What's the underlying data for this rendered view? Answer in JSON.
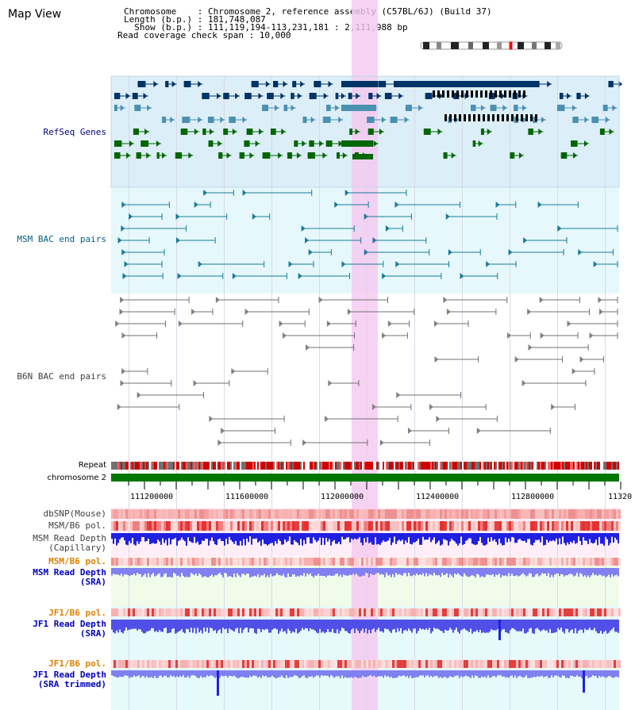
{
  "view_title": "Map View",
  "header": {
    "chromosome_line": "Chromosome    : Chromosome 2, reference assembly (C57BL/6J) (Build 37)",
    "length_line": "Length (b.p.) : 181,748,087",
    "show_line": "  Show (b.p.) : 111,119,194-113,231,181 : 2,111,988 bp",
    "coverage_line": "Read coverage check span : 10,000"
  },
  "tracks": {
    "refseq_label": "RefSeq Genes",
    "msm_bac_label": "MSM BAC end pairs",
    "b6n_bac_label": "B6N BAC end pairs",
    "repeat_label": "Repeat",
    "chromosome_label": "chromosome 2",
    "dbsnp_label": "dbSNP(Mouse)",
    "msm_b6_pol_label": "MSM/B6 pol.",
    "msm_depth_cap_label_1": "MSM Read Depth",
    "msm_depth_cap_label_2": "(Capillary)",
    "msm_b6_pol2_label": "MSM/B6 pol.",
    "msm_depth_sra_label_1": "MSM Read Depth",
    "msm_depth_sra_label_2": "(SRA)",
    "jf1_b6_pol_label": "JF1/B6 pol.",
    "jf1_depth_sra_label_1": "JF1 Read Depth",
    "jf1_depth_sra_label_2": "(SRA)",
    "jf1_b6_pol2_label": "JF1/B6 pol.",
    "jf1_depth_trim_label_1": "JF1 Read Depth",
    "jf1_depth_trim_label_2": "(SRA trimmed)"
  },
  "axis": {
    "ticks": [
      "111200000",
      "111600000",
      "112000000",
      "112400000",
      "112800000",
      "11320"
    ]
  },
  "colors": {
    "refseq_bg": "#dceef8",
    "bac_bg": "#e6f8fb",
    "highlight": "#f5c8f0",
    "refseq_label": "#000080",
    "msm_label": "#006080",
    "b6n_label": "#404040",
    "depth_label": "#0000c0",
    "pol_orange": "#e08000",
    "chromosome_green": "#007700",
    "repeat_red": "#e00000"
  }
}
